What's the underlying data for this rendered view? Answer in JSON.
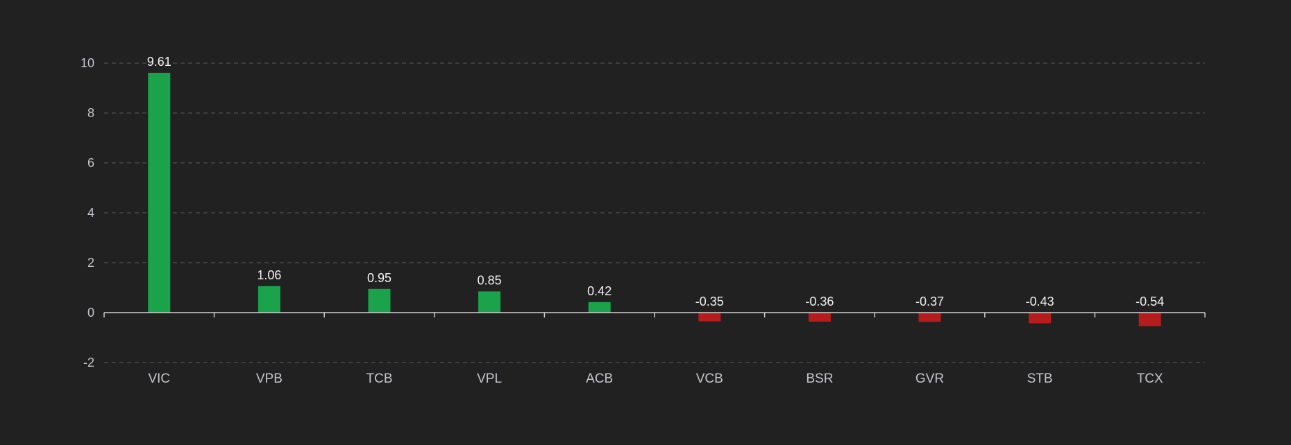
{
  "chart_data": {
    "type": "bar",
    "title": "",
    "xlabel": "",
    "ylabel": "",
    "categories": [
      "VIC",
      "VPB",
      "TCB",
      "VPL",
      "ACB",
      "VCB",
      "BSR",
      "GVR",
      "STB",
      "TCX"
    ],
    "values": [
      9.61,
      1.06,
      0.95,
      0.85,
      0.42,
      -0.35,
      -0.36,
      -0.37,
      -0.43,
      -0.54
    ],
    "value_labels": [
      "9.61",
      "1.06",
      "0.95",
      "0.85",
      "0.42",
      "-0.35",
      "-0.36",
      "-0.37",
      "-0.43",
      "-0.54"
    ],
    "ylim": [
      -2,
      10
    ],
    "yticks": [
      -2,
      0,
      2,
      4,
      6,
      8,
      10
    ],
    "ytick_labels": [
      "-2",
      "0",
      "2",
      "4",
      "6",
      "8",
      "10"
    ],
    "grid": true,
    "legend": "none",
    "colors": {
      "positive": "#1aa34a",
      "negative": "#b71c1c",
      "background": "#212121"
    }
  }
}
